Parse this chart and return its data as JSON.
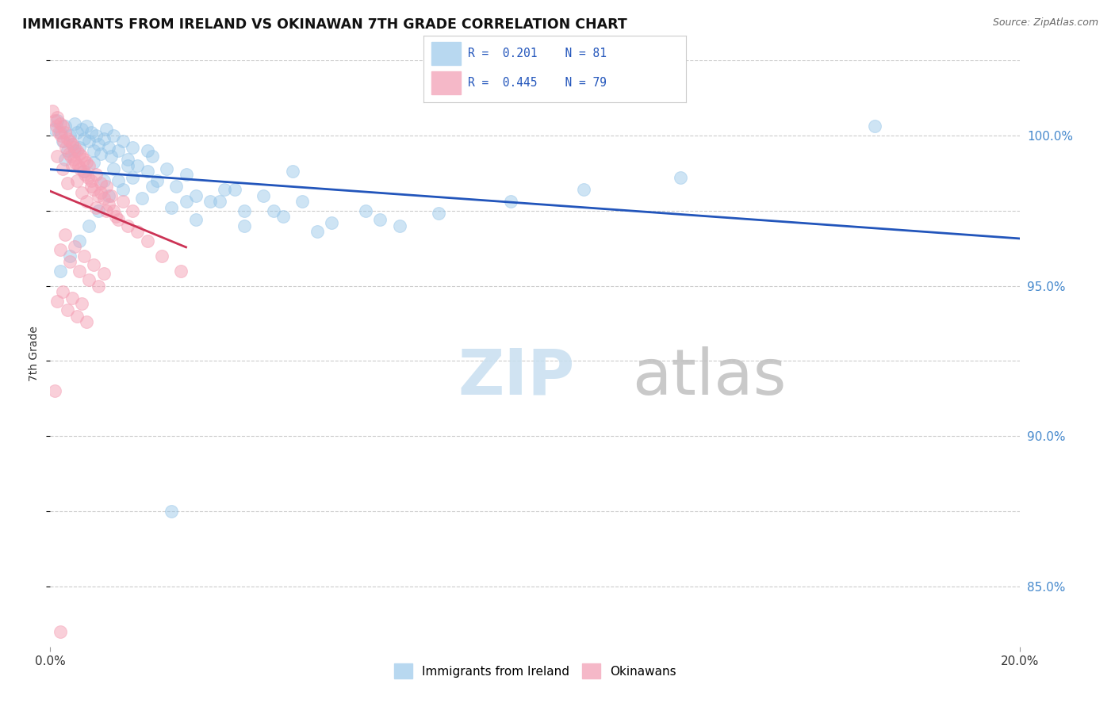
{
  "title": "IMMIGRANTS FROM IRELAND VS OKINAWAN 7TH GRADE CORRELATION CHART",
  "source": "Source: ZipAtlas.com",
  "ylabel": "7th Grade",
  "xlim": [
    0.0,
    20.0
  ],
  "ylim": [
    83.0,
    102.5
  ],
  "yticks": [
    85.0,
    90.0,
    95.0,
    100.0
  ],
  "ytick_labels": [
    "85.0%",
    "90.0%",
    "95.0%",
    "100.0%"
  ],
  "blue_color": "#93c4e8",
  "pink_color": "#f5a0b5",
  "trend_blue": "#2255bb",
  "trend_pink": "#cc3355",
  "blue_scatter_x": [
    0.1,
    0.15,
    0.2,
    0.25,
    0.3,
    0.35,
    0.4,
    0.45,
    0.5,
    0.55,
    0.6,
    0.65,
    0.7,
    0.75,
    0.8,
    0.85,
    0.9,
    0.95,
    1.0,
    1.05,
    1.1,
    1.15,
    1.2,
    1.25,
    1.3,
    1.4,
    1.5,
    1.6,
    1.7,
    1.8,
    2.0,
    2.1,
    2.2,
    2.4,
    2.6,
    2.8,
    3.0,
    3.3,
    3.6,
    4.0,
    4.4,
    4.8,
    5.2,
    5.8,
    6.5,
    7.2,
    8.0,
    9.5,
    11.0,
    13.0,
    0.3,
    0.5,
    0.7,
    0.9,
    1.1,
    1.3,
    1.5,
    1.7,
    1.9,
    2.1,
    2.5,
    3.0,
    3.5,
    4.0,
    4.6,
    5.5,
    6.8,
    2.5,
    17.0,
    0.2,
    0.4,
    0.6,
    0.8,
    1.0,
    1.2,
    1.4,
    1.6,
    2.0,
    2.8,
    3.8,
    5.0
  ],
  "blue_scatter_y": [
    100.2,
    100.5,
    100.1,
    99.8,
    100.3,
    99.5,
    100.0,
    99.7,
    100.4,
    100.1,
    99.6,
    100.2,
    99.9,
    100.3,
    99.8,
    100.1,
    99.5,
    100.0,
    99.7,
    99.4,
    99.9,
    100.2,
    99.6,
    99.3,
    100.0,
    99.5,
    99.8,
    99.2,
    99.6,
    99.0,
    98.8,
    99.3,
    98.5,
    98.9,
    98.3,
    98.7,
    98.0,
    97.8,
    98.2,
    97.5,
    98.0,
    97.3,
    97.8,
    97.1,
    97.5,
    97.0,
    97.4,
    97.8,
    98.2,
    98.6,
    99.2,
    99.5,
    98.8,
    99.1,
    98.5,
    98.9,
    98.2,
    98.6,
    97.9,
    98.3,
    97.6,
    97.2,
    97.8,
    97.0,
    97.5,
    96.8,
    97.2,
    87.5,
    100.3,
    95.5,
    96.0,
    96.5,
    97.0,
    97.5,
    98.0,
    98.5,
    99.0,
    99.5,
    97.8,
    98.2,
    98.8
  ],
  "pink_scatter_x": [
    0.05,
    0.1,
    0.12,
    0.15,
    0.18,
    0.2,
    0.22,
    0.25,
    0.28,
    0.3,
    0.32,
    0.35,
    0.38,
    0.4,
    0.42,
    0.45,
    0.48,
    0.5,
    0.52,
    0.55,
    0.58,
    0.6,
    0.62,
    0.65,
    0.68,
    0.7,
    0.72,
    0.75,
    0.78,
    0.8,
    0.85,
    0.9,
    0.95,
    1.0,
    1.05,
    1.1,
    1.15,
    1.2,
    1.3,
    1.4,
    1.5,
    1.6,
    1.7,
    1.8,
    2.0,
    2.3,
    2.7,
    0.15,
    0.25,
    0.35,
    0.45,
    0.55,
    0.65,
    0.75,
    0.85,
    0.95,
    1.05,
    1.15,
    1.25,
    1.35,
    0.2,
    0.3,
    0.4,
    0.5,
    0.6,
    0.7,
    0.8,
    0.9,
    1.0,
    1.1,
    0.15,
    0.25,
    0.35,
    0.45,
    0.55,
    0.65,
    0.75,
    0.1,
    0.2
  ],
  "pink_scatter_y": [
    100.8,
    100.5,
    100.3,
    100.6,
    100.1,
    100.4,
    100.0,
    100.3,
    99.8,
    100.1,
    99.6,
    99.9,
    99.4,
    99.8,
    99.3,
    99.7,
    99.2,
    99.6,
    99.1,
    99.5,
    99.0,
    99.4,
    98.9,
    99.3,
    98.8,
    99.2,
    98.7,
    99.1,
    98.6,
    99.0,
    98.5,
    98.2,
    98.7,
    98.0,
    98.4,
    97.9,
    98.3,
    97.7,
    97.5,
    97.2,
    97.8,
    97.0,
    97.5,
    96.8,
    96.5,
    96.0,
    95.5,
    99.3,
    98.9,
    98.4,
    99.0,
    98.5,
    98.1,
    97.8,
    98.3,
    97.6,
    98.1,
    97.5,
    98.0,
    97.3,
    96.2,
    96.7,
    95.8,
    96.3,
    95.5,
    96.0,
    95.2,
    95.7,
    95.0,
    95.4,
    94.5,
    94.8,
    94.2,
    94.6,
    94.0,
    94.4,
    93.8,
    91.5,
    83.5
  ],
  "watermark_zip": "ZIP",
  "watermark_atlas": "atlas",
  "background_color": "#ffffff"
}
